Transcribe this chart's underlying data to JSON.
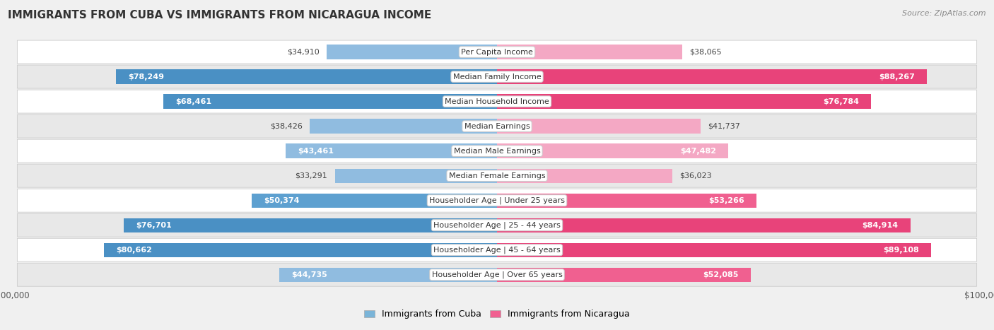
{
  "title": "IMMIGRANTS FROM CUBA VS IMMIGRANTS FROM NICARAGUA INCOME",
  "source": "Source: ZipAtlas.com",
  "categories": [
    "Per Capita Income",
    "Median Family Income",
    "Median Household Income",
    "Median Earnings",
    "Median Male Earnings",
    "Median Female Earnings",
    "Householder Age | Under 25 years",
    "Householder Age | 25 - 44 years",
    "Householder Age | 45 - 64 years",
    "Householder Age | Over 65 years"
  ],
  "cuba_values": [
    34910,
    78249,
    68461,
    38426,
    43461,
    33291,
    50374,
    76701,
    80662,
    44735
  ],
  "nicaragua_values": [
    38065,
    88267,
    76784,
    41737,
    47482,
    36023,
    53266,
    84914,
    89108,
    52085
  ],
  "cuba_color_light": "#a8c8e8",
  "cuba_color_dark": "#4a90c4",
  "nicaragua_color_light": "#f4a0c0",
  "nicaragua_color_dark": "#e8437a",
  "cuba_label": "Immigrants from Cuba",
  "nicaragua_label": "Immigrants from Nicaragua",
  "max_value": 100000,
  "title_fontsize": 11,
  "source_fontsize": 8,
  "axis_fontsize": 8.5,
  "bar_label_fontsize": 8,
  "category_fontsize": 8,
  "cuba_threshold": 50000,
  "nicaragua_threshold": 50000
}
